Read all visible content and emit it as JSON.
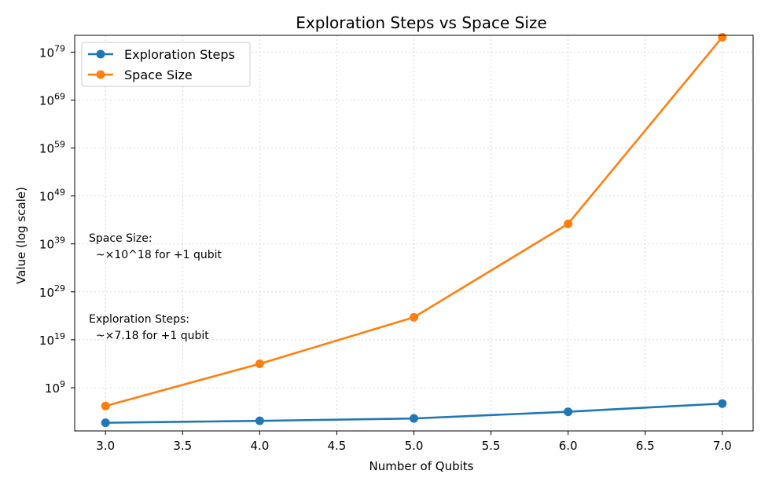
{
  "chart_data": {
    "type": "line",
    "title": "Exploration Steps vs Space Size",
    "xlabel": "Number of Qubits",
    "ylabel": "Value (log scale)",
    "yscale": "log",
    "x": [
      3.0,
      4.0,
      5.0,
      6.0,
      7.0
    ],
    "xlim": [
      2.8,
      7.2
    ],
    "xticks": [
      "3.0",
      "3.5",
      "4.0",
      "4.5",
      "5.0",
      "5.5",
      "6.0",
      "6.5",
      "7.0"
    ],
    "ylim_log10": [
      0,
      82.5
    ],
    "ytick_exponents": [
      "9",
      "19",
      "29",
      "39",
      "49",
      "59",
      "69",
      "79"
    ],
    "ytick_base": "10",
    "grid": true,
    "legend_position": "upper-left",
    "series": [
      {
        "name": "Exploration Steps",
        "color": "#1f77b4",
        "log10_values": [
          1.7,
          2.1,
          2.6,
          4.0,
          5.7
        ]
      },
      {
        "name": "Space Size",
        "color": "#ff7f0e",
        "log10_values": [
          5.2,
          14.0,
          23.7,
          43.2,
          82.1
        ]
      }
    ],
    "annotations": [
      {
        "lines": [
          "Space Size:",
          "  ~×10^18 for +1 qubit"
        ]
      },
      {
        "lines": [
          "Exploration Steps:",
          "  ~×7.18 for +1 qubit"
        ]
      }
    ]
  }
}
